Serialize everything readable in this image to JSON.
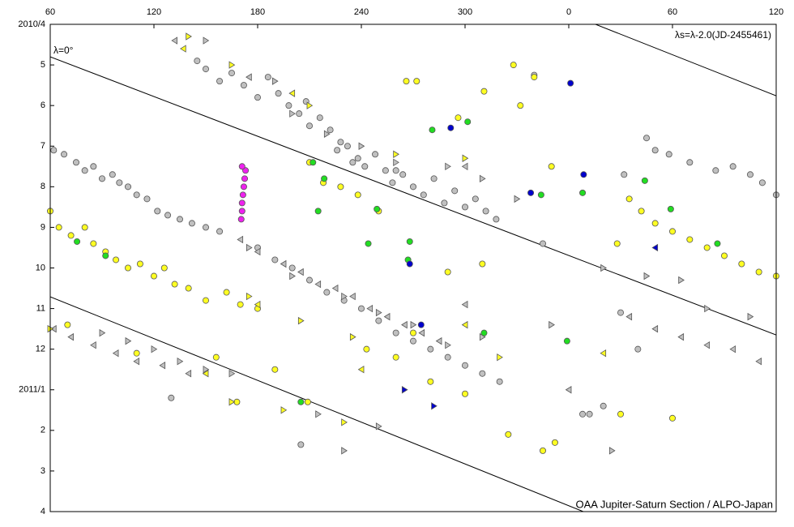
{
  "chart_data": {
    "type": "scatter",
    "xlim": [
      60,
      480
    ],
    "xticks": [
      60,
      120,
      180,
      240,
      300,
      {
        "value": 360,
        "label": "0"
      },
      {
        "value": 420,
        "label": "60"
      },
      {
        "value": 480,
        "label": "120"
      }
    ],
    "ylim": [
      0,
      12
    ],
    "y_inverted": true,
    "yticks": [
      {
        "value": 0,
        "label": "2010/4"
      },
      {
        "value": 1,
        "label": "5"
      },
      {
        "value": 2,
        "label": "6"
      },
      {
        "value": 3,
        "label": "7"
      },
      {
        "value": 4,
        "label": "8"
      },
      {
        "value": 5,
        "label": "9"
      },
      {
        "value": 6,
        "label": "10"
      },
      {
        "value": 7,
        "label": "11"
      },
      {
        "value": 8,
        "label": "12"
      },
      {
        "value": 9,
        "label": "2011/1"
      },
      {
        "value": 10,
        "label": "2"
      },
      {
        "value": 11,
        "label": "3"
      },
      {
        "value": 12,
        "label": "4"
      }
    ],
    "annotations": [
      "λ=0°",
      "λs=λ-2.0(JD-2455461)",
      "OAA Jupiter-Saturn Section / ALPO-Japan"
    ],
    "lines": [
      {
        "color": "#000000",
        "x": [
          60,
          480
        ],
        "y": [
          0.8,
          7.65
        ]
      },
      {
        "color": "#000000",
        "x": [
          60,
          368.4
        ],
        "y": [
          6.71,
          12
        ]
      },
      {
        "color": "#000000",
        "x": [
          375.5,
          480
        ],
        "y": [
          0,
          1.76
        ]
      }
    ],
    "series": [
      {
        "marker": "circle",
        "color": "#c0c0c0",
        "x": [
          145,
          150,
          158,
          165,
          172,
          180,
          186,
          192,
          198,
          204,
          210,
          208,
          216,
          222,
          228,
          232,
          238,
          242,
          248,
          254,
          258,
          264,
          270,
          276,
          282,
          288,
          294,
          300,
          306,
          312,
          318,
          260,
          235,
          226,
          62,
          68,
          75,
          80,
          85,
          90,
          96,
          100,
          105,
          110,
          116,
          122,
          128,
          135,
          142,
          150,
          158,
          180,
          190,
          200,
          210,
          220,
          230,
          240,
          250,
          260,
          270,
          280,
          290,
          300,
          310,
          320,
          410,
          418,
          430,
          445,
          455,
          465,
          472,
          480,
          340,
          205,
          130,
          368,
          380,
          405,
          392,
          345,
          390,
          400,
          372
        ],
        "y": [
          0.9,
          1.1,
          1.4,
          1.2,
          1.5,
          1.8,
          1.3,
          1.7,
          2.0,
          2.2,
          2.5,
          1.9,
          2.3,
          2.6,
          2.9,
          3.0,
          3.3,
          3.5,
          3.2,
          3.6,
          3.9,
          3.7,
          4.0,
          4.2,
          3.8,
          4.4,
          4.1,
          4.5,
          4.3,
          4.6,
          4.8,
          3.6,
          3.4,
          3.1,
          3.1,
          3.2,
          3.4,
          3.6,
          3.5,
          3.8,
          3.7,
          3.9,
          4.0,
          4.2,
          4.3,
          4.6,
          4.7,
          4.8,
          4.9,
          5.0,
          5.1,
          5.5,
          5.8,
          6.0,
          6.3,
          6.6,
          6.8,
          7.0,
          7.3,
          7.6,
          7.8,
          8.0,
          8.2,
          8.4,
          8.6,
          8.8,
          3.1,
          3.2,
          3.4,
          3.6,
          3.5,
          3.7,
          3.9,
          4.2,
          1.25,
          10.35,
          9.2,
          9.6,
          9.4,
          2.8,
          3.7,
          5.4,
          7.1,
          8.0,
          9.6
        ]
      },
      {
        "marker": "circle",
        "color": "#ffff22",
        "x": [
          60,
          65,
          72,
          80,
          85,
          92,
          98,
          105,
          112,
          120,
          126,
          132,
          140,
          150,
          162,
          170,
          180,
          210,
          218,
          228,
          238,
          250,
          243,
          260,
          270,
          280,
          300,
          325,
          345,
          352,
          332,
          328,
          340,
          266,
          296,
          350,
          395,
          402,
          410,
          420,
          430,
          440,
          450,
          460,
          470,
          480,
          388,
          290,
          310,
          390,
          420,
          209,
          156,
          168,
          190,
          110,
          70,
          272,
          311
        ],
        "y": [
          4.6,
          5.0,
          5.2,
          5.0,
          5.4,
          5.6,
          5.8,
          6.0,
          5.9,
          6.2,
          6.0,
          6.4,
          6.5,
          6.8,
          6.6,
          6.9,
          7.0,
          3.4,
          3.9,
          4.0,
          4.2,
          4.6,
          8.0,
          8.2,
          7.6,
          8.8,
          9.1,
          10.1,
          10.5,
          10.3,
          2.0,
          1.0,
          1.3,
          1.4,
          2.3,
          3.5,
          4.3,
          4.6,
          4.9,
          5.1,
          5.3,
          5.5,
          5.7,
          5.9,
          6.1,
          6.2,
          5.4,
          6.1,
          5.9,
          9.6,
          9.7,
          9.3,
          8.2,
          9.3,
          8.5,
          8.1,
          7.4,
          1.4,
          1.65
        ]
      },
      {
        "marker": "circle",
        "color": "#22dd22",
        "x": [
          212,
          218.5,
          215,
          249,
          244,
          268,
          267,
          281,
          301.5,
          344,
          368,
          404,
          419,
          446,
          359,
          311,
          205,
          92,
          75.5
        ],
        "y": [
          3.4,
          3.8,
          4.6,
          4.55,
          5.4,
          5.35,
          5.8,
          2.6,
          2.4,
          4.2,
          4.15,
          3.85,
          4.55,
          5.4,
          7.8,
          7.6,
          9.3,
          5.7,
          5.35
        ]
      },
      {
        "marker": "circle",
        "color": "#0000cc",
        "x": [
          361,
          368.6,
          291.7,
          338,
          274.6,
          268
        ],
        "y": [
          1.45,
          3.7,
          2.55,
          4.15,
          7.4,
          5.9
        ]
      },
      {
        "marker": "circle",
        "color": "#ee22ee",
        "x": [
          170.5,
          171,
          171,
          171.5,
          172,
          172.5,
          173,
          171
        ],
        "y": [
          4.8,
          4.6,
          4.4,
          4.2,
          4.0,
          3.8,
          3.6,
          3.5
        ]
      },
      {
        "marker": "triangle-left",
        "color": "#c0c0c0",
        "x": [
          170,
          180,
          195,
          205,
          215,
          225,
          235,
          245,
          255,
          265,
          275,
          285,
          62,
          72,
          85,
          98,
          110,
          125,
          140,
          395,
          410,
          425,
          440,
          455,
          470,
          132,
          175,
          300,
          300,
          360
        ],
        "y": [
          5.3,
          5.6,
          5.9,
          6.1,
          6.4,
          6.5,
          6.7,
          7.0,
          7.2,
          7.4,
          7.6,
          7.8,
          7.5,
          7.7,
          7.9,
          8.1,
          8.3,
          8.4,
          8.6,
          7.2,
          7.5,
          7.7,
          7.9,
          8.0,
          8.3,
          0.4,
          1.3,
          3.5,
          6.9,
          9.0
        ]
      },
      {
        "marker": "triangle-right",
        "color": "#c0c0c0",
        "x": [
          150,
          190,
          200,
          220,
          240,
          260,
          290,
          310,
          330,
          175,
          200,
          230,
          250,
          270,
          290,
          310,
          90,
          105,
          120,
          135,
          150,
          165,
          350,
          380,
          405,
          425,
          440,
          465,
          250,
          230,
          215,
          385
        ],
        "y": [
          0.4,
          1.4,
          2.2,
          2.7,
          3.0,
          3.4,
          3.5,
          3.8,
          4.3,
          5.5,
          6.2,
          6.7,
          7.1,
          7.4,
          7.9,
          7.7,
          7.6,
          7.8,
          8.0,
          8.3,
          8.5,
          8.6,
          7.4,
          6.0,
          6.2,
          6.3,
          7.0,
          7.2,
          9.9,
          10.5,
          9.6,
          10.5
        ]
      },
      {
        "marker": "triangle-left",
        "color": "#ffff22",
        "x": [
          137,
          180,
          240,
          150,
          380,
          300,
          200
        ],
        "y": [
          0.6,
          6.9,
          8.5,
          8.6,
          8.1,
          7.4,
          1.7
        ]
      },
      {
        "marker": "triangle-right",
        "color": "#ffff22",
        "x": [
          140,
          165,
          210,
          260,
          300,
          175,
          205,
          235,
          165,
          230,
          195,
          320,
          60
        ],
        "y": [
          0.3,
          1.0,
          2.0,
          3.2,
          3.3,
          6.7,
          7.3,
          7.7,
          9.3,
          9.8,
          9.5,
          8.2,
          7.5
        ]
      },
      {
        "marker": "triangle-left",
        "color": "#0000cc",
        "x": [
          410
        ],
        "y": [
          5.5
        ]
      },
      {
        "marker": "triangle-right",
        "color": "#0000cc",
        "x": [
          265,
          282
        ],
        "y": [
          9.0,
          9.4
        ]
      }
    ]
  }
}
